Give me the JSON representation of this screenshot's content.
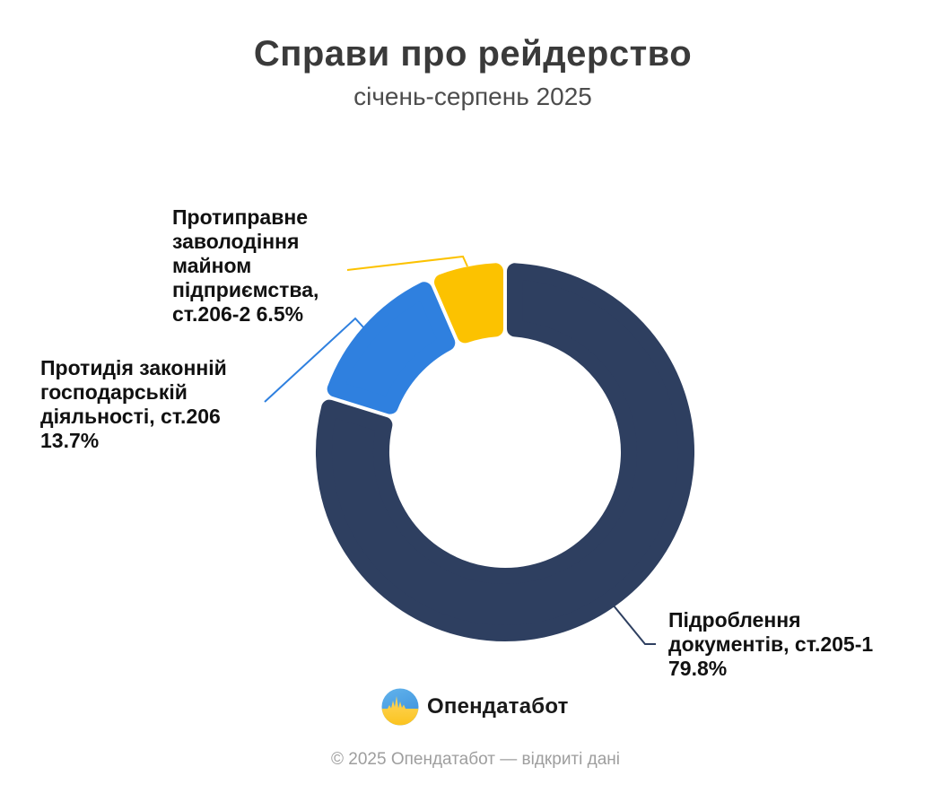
{
  "chart_data": {
    "type": "pie",
    "subtype": "donut",
    "title": "Справи про рейдерство",
    "subtitle": "січень-серпень 2025",
    "unit": "percent",
    "start_angle_deg": 0,
    "direction": "clockwise",
    "inner_radius_ratio": 0.61,
    "legend_position": "none",
    "series": [
      {
        "key": "st205-1",
        "name": "Підроблення документів, ст.205-1",
        "value": 79.8,
        "color": "#2E3F60",
        "label_lines": [
          "Підроблення",
          "документів, ст.205-1",
          "79.8%"
        ]
      },
      {
        "key": "st206",
        "name": "Протидія законній господарській діяльності, ст.206",
        "value": 13.7,
        "color": "#2F80DF",
        "label_lines": [
          "Протидія законній",
          "господарській",
          "діяльності, ст.206",
          "13.7%"
        ]
      },
      {
        "key": "st206-2",
        "name": "Протиправне заволодіння майном підприємства, ст.206-2",
        "value": 6.5,
        "color": "#FCC200",
        "label_lines": [
          "Протиправне",
          "заволодіння",
          "майном",
          "підприємства,",
          "ст.206-2 6.5%"
        ]
      }
    ]
  },
  "branding": {
    "logo_text": "Опендатабот",
    "logo_icon": "opendatabot-pulse-icon",
    "flag_blue": "#4AA3E8",
    "flag_yellow": "#FFC93F"
  },
  "footer": {
    "copyright": "© 2025 Опендатабот — відкриті дані"
  }
}
